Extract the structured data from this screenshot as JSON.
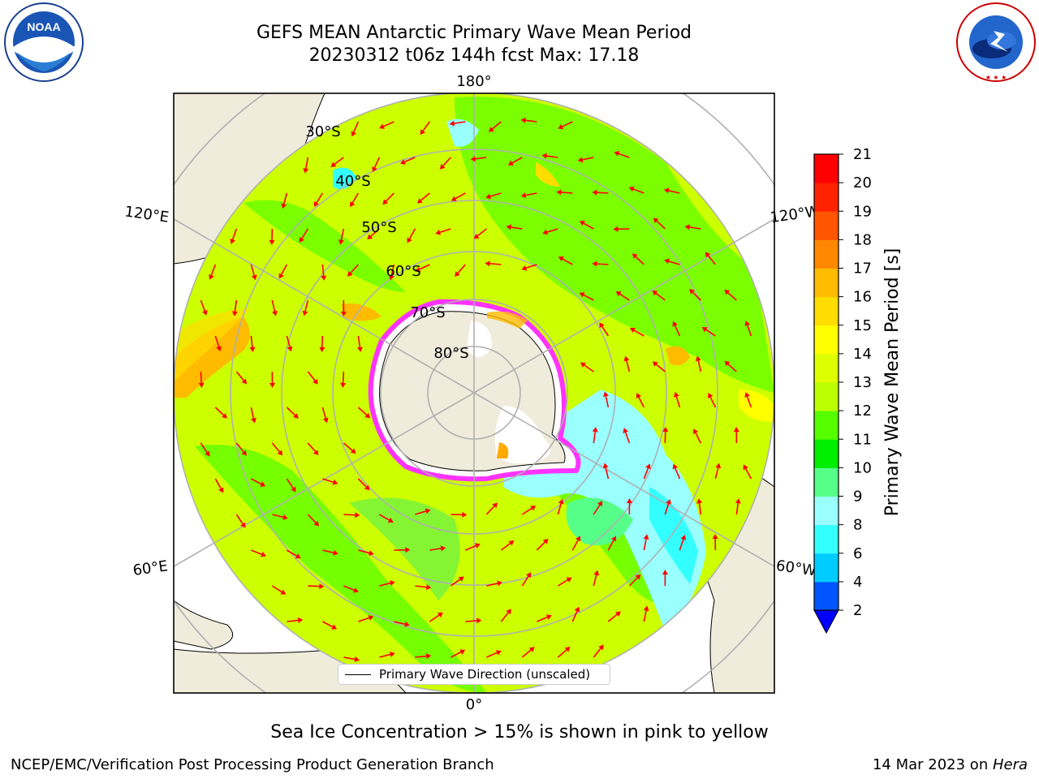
{
  "logos": {
    "left": {
      "icon": "noaa-logo",
      "text": "NOAA",
      "ring_text": "NATIONAL OCEANIC AND ATMOSPHERIC ADMINISTRATION · U.S. DEPARTMENT OF COMMERCE"
    },
    "right": {
      "icon": "nws-logo",
      "ring_text": "NATIONAL WEATHER SERVICE"
    }
  },
  "title": {
    "line1": "GEFS MEAN Antarctic Primary Wave Mean Period",
    "line2": "20230312 t06z 144h fcst   Max: 17.18"
  },
  "map": {
    "projection": "south-polar-stereographic",
    "longitude_labels": {
      "top": "180°",
      "bottom": "0°",
      "upper_left": "120°E",
      "upper_right": "120°W",
      "lower_left": "60°E",
      "lower_right": "60°W"
    },
    "latitude_labels": [
      "30°S",
      "40°S",
      "50°S",
      "60°S",
      "70°S",
      "80°S"
    ],
    "legend": {
      "label": "Primary Wave Direction (unscaled)"
    },
    "colors": {
      "land": "#efecdb",
      "ocean_dominant": "#ccff00",
      "ice_edge": "#ff33ff",
      "arrows": "#ff0000",
      "grid": "#b0b0b0"
    }
  },
  "colorbar": {
    "label": "Primary Wave Mean Period [s]",
    "ticks": [
      "2",
      "4",
      "6",
      "8",
      "9",
      "10",
      "11",
      "12",
      "13",
      "14",
      "15",
      "16",
      "17",
      "18",
      "19",
      "20",
      "21"
    ],
    "colors": [
      "#0055ff",
      "#00ccff",
      "#33ffff",
      "#99ffff",
      "#55ff88",
      "#00ee00",
      "#55ff00",
      "#bbff00",
      "#ddff00",
      "#ffff00",
      "#ffdd00",
      "#ffbb00",
      "#ff8800",
      "#ff5500",
      "#ff2200",
      "#ff0000"
    ],
    "extend_color": "#0000ff"
  },
  "caption": "Sea Ice Concentration > 15% is shown in pink to yellow",
  "footer": {
    "left": "NCEP/EMC/Verification Post Processing Product Generation Branch",
    "right_prefix": "14 Mar 2023 on ",
    "right_machine": "Hera"
  }
}
